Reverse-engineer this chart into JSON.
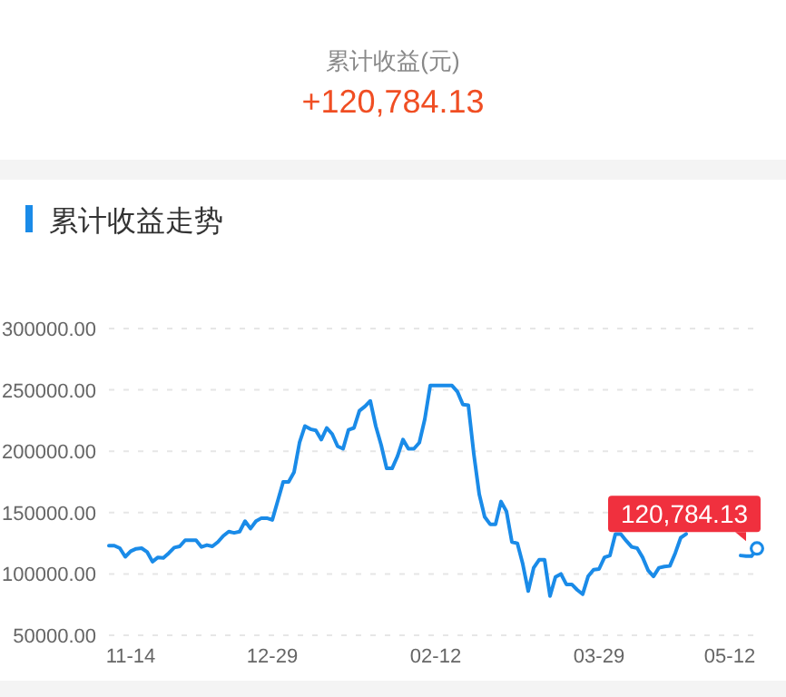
{
  "chart_data": {
    "type": "line",
    "title": "累计收益走势",
    "annotations": [
      "累计收益(元)",
      "+120,784.13"
    ],
    "grid": "y",
    "ylim": [
      50000,
      300000
    ],
    "yticks": [
      {
        "value": 50000,
        "label": "50000.00"
      },
      {
        "value": 100000,
        "label": "100000.00"
      },
      {
        "value": 150000,
        "label": "150000.00"
      },
      {
        "value": 200000,
        "label": "200000.00"
      },
      {
        "value": 250000,
        "label": "250000.00"
      },
      {
        "value": 300000,
        "label": "300000.00"
      }
    ],
    "categories": [
      null,
      null,
      null,
      null,
      "11-14",
      null,
      null,
      null,
      null,
      null,
      null,
      null,
      null,
      null,
      null,
      null,
      null,
      null,
      null,
      null,
      null,
      null,
      null,
      null,
      null,
      null,
      null,
      null,
      null,
      null,
      "12-29",
      null,
      null,
      null,
      null,
      null,
      null,
      null,
      null,
      null,
      null,
      null,
      null,
      null,
      null,
      null,
      null,
      null,
      null,
      null,
      null,
      null,
      null,
      null,
      null,
      null,
      null,
      null,
      null,
      null,
      "02-12",
      null,
      null,
      null,
      null,
      null,
      null,
      null,
      null,
      null,
      null,
      null,
      null,
      null,
      null,
      null,
      null,
      null,
      null,
      null,
      null,
      null,
      null,
      null,
      null,
      null,
      null,
      null,
      null,
      null,
      "03-29",
      null,
      null,
      null,
      null,
      null,
      null,
      null,
      null,
      null,
      null,
      null,
      null,
      null,
      null,
      null,
      null,
      null,
      null,
      null,
      null,
      null,
      null,
      null,
      "05-12",
      null,
      null,
      null,
      null,
      null
    ],
    "series": [
      {
        "type": "line",
        "color": "#1a8be8",
        "marker": "none",
        "line_style": "solid",
        "values": [
          123000,
          123000,
          121000,
          114000,
          118500,
          120500,
          121000,
          118000,
          110000,
          113500,
          113000,
          117000,
          121500,
          122500,
          127500,
          127500,
          127500,
          122000,
          123500,
          122500,
          126000,
          131000,
          134500,
          133500,
          134500,
          143000,
          137000,
          143000,
          145500,
          145500,
          144000,
          159500,
          175000,
          175000,
          183000,
          207000,
          220500,
          218000,
          217000,
          209500,
          219000,
          214000,
          204000,
          202000,
          217500,
          219000,
          233000,
          236500,
          241000,
          220500,
          205000,
          186000,
          186000,
          196000,
          209500,
          202000,
          202000,
          207000,
          226000,
          253500,
          253500,
          253500,
          253500,
          253500,
          248500,
          238000,
          237500,
          198000,
          165000,
          146500,
          140500,
          140500,
          159000,
          151000,
          126000,
          125000,
          108000,
          86000,
          105000,
          111500,
          111500,
          82000,
          97500,
          100000,
          91500,
          91500,
          87000,
          83500,
          98000,
          103500,
          104000,
          113500,
          115000,
          132500,
          132500,
          127000,
          122000,
          121000,
          113500,
          103000,
          98000,
          105000,
          106000,
          106500,
          117000,
          129500,
          132500,
          null,
          null,
          null,
          null,
          null,
          null,
          null,
          null,
          null,
          115000,
          114500,
          114500,
          120784.13
        ]
      },
      {
        "type": "scatter",
        "color": "#1a8be8",
        "marker": "circle",
        "values": [
          null,
          null,
          null,
          null,
          null,
          null,
          null,
          null,
          null,
          null,
          null,
          null,
          null,
          null,
          null,
          null,
          null,
          null,
          null,
          null,
          null,
          null,
          null,
          null,
          null,
          null,
          null,
          null,
          null,
          null,
          null,
          null,
          null,
          null,
          null,
          null,
          null,
          null,
          null,
          null,
          null,
          null,
          null,
          null,
          null,
          null,
          null,
          null,
          null,
          null,
          null,
          null,
          null,
          null,
          null,
          null,
          null,
          null,
          null,
          null,
          null,
          null,
          null,
          null,
          null,
          null,
          null,
          null,
          null,
          null,
          null,
          null,
          null,
          null,
          null,
          null,
          null,
          null,
          null,
          null,
          null,
          null,
          null,
          null,
          null,
          null,
          null,
          null,
          null,
          null,
          null,
          null,
          null,
          null,
          null,
          null,
          null,
          null,
          null,
          null,
          null,
          null,
          null,
          null,
          null,
          null,
          null,
          null,
          null,
          null,
          null,
          null,
          null,
          null,
          null,
          null,
          null,
          null,
          null,
          120784.13
        ],
        "value_labels": [
          null,
          null,
          null,
          null,
          null,
          null,
          null,
          null,
          null,
          null,
          null,
          null,
          null,
          null,
          null,
          null,
          null,
          null,
          null,
          null,
          null,
          null,
          null,
          null,
          null,
          null,
          null,
          null,
          null,
          null,
          null,
          null,
          null,
          null,
          null,
          null,
          null,
          null,
          null,
          null,
          null,
          null,
          null,
          null,
          null,
          null,
          null,
          null,
          null,
          null,
          null,
          null,
          null,
          null,
          null,
          null,
          null,
          null,
          null,
          null,
          null,
          null,
          null,
          null,
          null,
          null,
          null,
          null,
          null,
          null,
          null,
          null,
          null,
          null,
          null,
          null,
          null,
          null,
          null,
          null,
          null,
          null,
          null,
          null,
          null,
          null,
          null,
          null,
          null,
          null,
          null,
          null,
          null,
          null,
          null,
          null,
          null,
          null,
          null,
          null,
          null,
          null,
          null,
          null,
          null,
          null,
          null,
          null,
          null,
          null,
          null,
          null,
          null,
          null,
          null,
          null,
          null,
          null,
          null,
          "120,784.13"
        ]
      }
    ]
  }
}
